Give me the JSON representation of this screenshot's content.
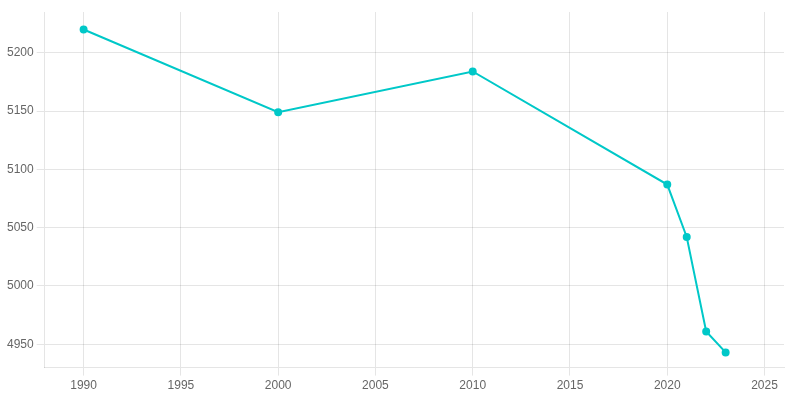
{
  "chart_data": {
    "type": "line",
    "x": [
      1990,
      2000,
      2010,
      2020,
      2021,
      2022,
      2023
    ],
    "values": [
      5220,
      5149,
      5184,
      5087,
      5042,
      4961,
      4943
    ],
    "color": "#00C8C8",
    "marker": "circle",
    "xlim": [
      1988,
      2026
    ],
    "ylim": [
      4930,
      5235
    ],
    "xticks": [
      1990,
      1995,
      2000,
      2005,
      2010,
      2015,
      2020,
      2025
    ],
    "yticks": [
      4950,
      5000,
      5050,
      5100,
      5150,
      5200
    ],
    "grid": true
  }
}
